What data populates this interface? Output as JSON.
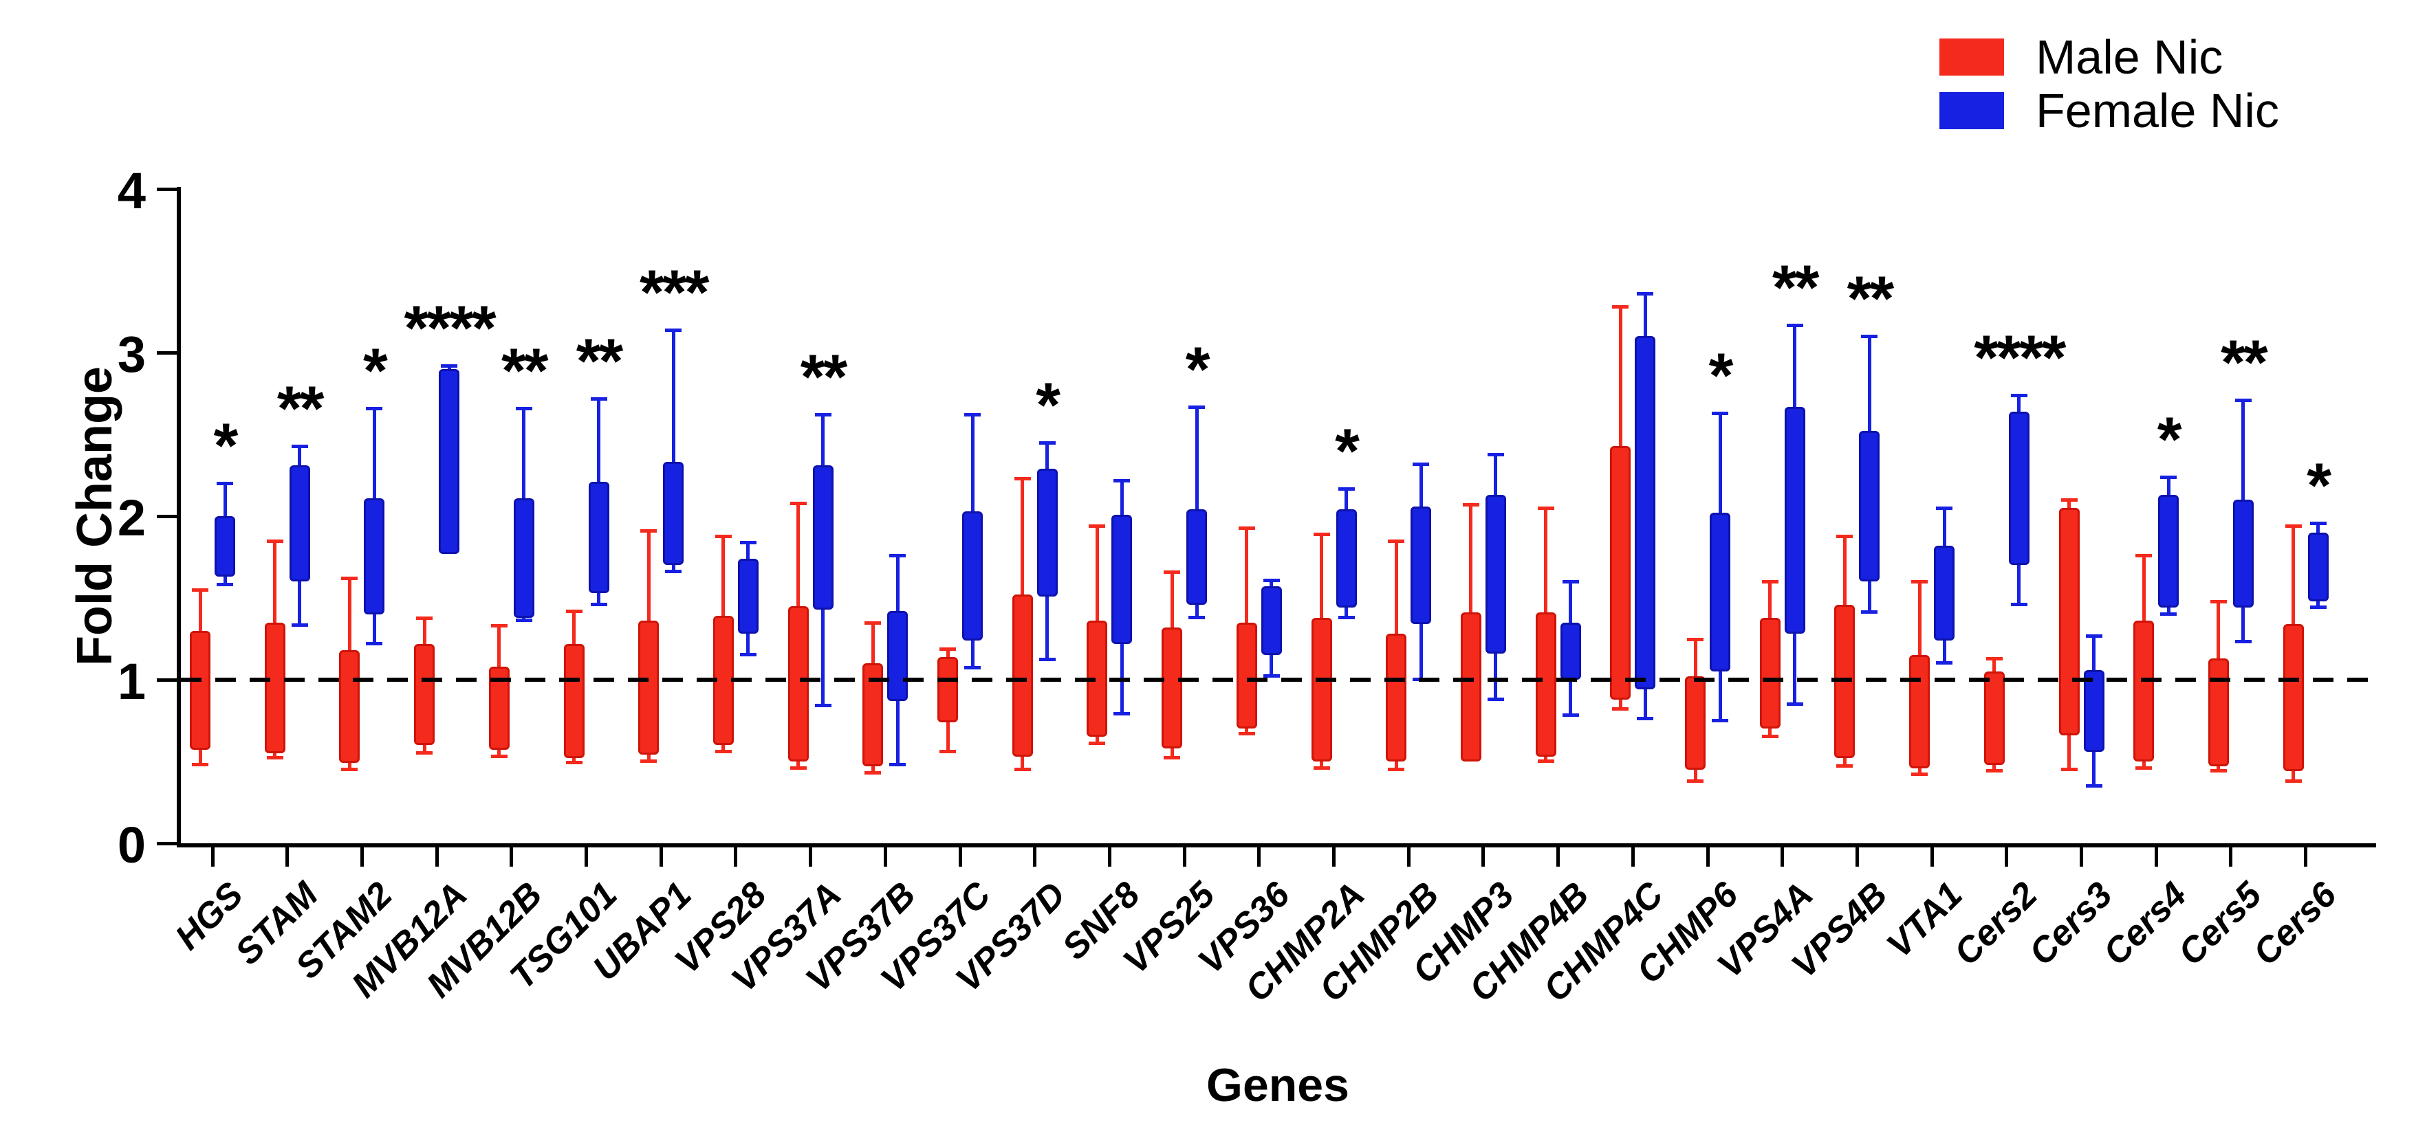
{
  "figure": {
    "ylabel": "Fold Change",
    "xlabel": "Genes"
  },
  "chart_data": {
    "type": "box",
    "title": "",
    "ylabel": "Fold Change",
    "xlabel": "Genes",
    "ylim": [
      0,
      4
    ],
    "yticks": [
      0,
      1,
      2,
      3,
      4
    ],
    "reference_line_y": 1.0,
    "grid": false,
    "legend_position": "top-right",
    "legend": [
      {
        "label": "Male Nic",
        "color": "#f42a1d",
        "edge": "#cf1408"
      },
      {
        "label": "Female Nic",
        "color": "#1721e1",
        "edge": "#0d12ad"
      }
    ],
    "categories": [
      "HGS",
      "STAM",
      "STAM2",
      "MVB12A",
      "MVB12B",
      "TSG101",
      "UBAP1",
      "VPS28",
      "VPS37A",
      "VPS37B",
      "VPS37C",
      "VPS37D",
      "SNF8",
      "VPS25",
      "VPS36",
      "CHMP2A",
      "CHMP2B",
      "CHMP3",
      "CHMP4B",
      "CHMP4C",
      "CHMP6",
      "VPS4A",
      "VPS4B",
      "VTA1",
      "Cers2",
      "Cers3",
      "Cers4",
      "Cers5",
      "Cers6"
    ],
    "significance": [
      "*",
      "**",
      "*",
      "****",
      "**",
      "**",
      "***",
      "",
      "**",
      "",
      "",
      "*",
      "",
      "*",
      "",
      "*",
      "",
      "",
      "",
      "",
      "*",
      "**",
      "**",
      "",
      "****",
      "",
      "*",
      "**",
      "*"
    ],
    "series": [
      {
        "name": "Male Nic",
        "color": "#f42a1d",
        "edge": "#cf1408",
        "boxes": [
          {
            "lo": 0.57,
            "hi": 1.3,
            "wlo": 0.48,
            "whi": 1.55
          },
          {
            "lo": 0.55,
            "hi": 1.35,
            "wlo": 0.52,
            "whi": 1.85
          },
          {
            "lo": 0.49,
            "hi": 1.18,
            "wlo": 0.45,
            "whi": 1.62
          },
          {
            "lo": 0.6,
            "hi": 1.22,
            "wlo": 0.55,
            "whi": 1.38
          },
          {
            "lo": 0.57,
            "hi": 1.08,
            "wlo": 0.53,
            "whi": 1.33
          },
          {
            "lo": 0.52,
            "hi": 1.22,
            "wlo": 0.49,
            "whi": 1.42
          },
          {
            "lo": 0.54,
            "hi": 1.36,
            "wlo": 0.5,
            "whi": 1.91
          },
          {
            "lo": 0.6,
            "hi": 1.39,
            "wlo": 0.56,
            "whi": 1.88
          },
          {
            "lo": 0.5,
            "hi": 1.45,
            "wlo": 0.46,
            "whi": 2.08
          },
          {
            "lo": 0.47,
            "hi": 1.1,
            "wlo": 0.43,
            "whi": 1.35
          },
          {
            "lo": 0.74,
            "hi": 1.14,
            "wlo": 0.56,
            "whi": 1.19
          },
          {
            "lo": 0.53,
            "hi": 1.52,
            "wlo": 0.45,
            "whi": 2.23
          },
          {
            "lo": 0.65,
            "hi": 1.36,
            "wlo": 0.61,
            "whi": 1.94
          },
          {
            "lo": 0.58,
            "hi": 1.32,
            "wlo": 0.52,
            "whi": 1.66
          },
          {
            "lo": 0.7,
            "hi": 1.35,
            "wlo": 0.67,
            "whi": 1.93
          },
          {
            "lo": 0.5,
            "hi": 1.38,
            "wlo": 0.46,
            "whi": 1.89
          },
          {
            "lo": 0.5,
            "hi": 1.28,
            "wlo": 0.45,
            "whi": 1.85
          },
          {
            "lo": 0.5,
            "hi": 1.41,
            "wlo": 0.5,
            "whi": 2.07
          },
          {
            "lo": 0.53,
            "hi": 1.41,
            "wlo": 0.5,
            "whi": 2.05
          },
          {
            "lo": 0.88,
            "hi": 2.43,
            "wlo": 0.82,
            "whi": 3.28
          },
          {
            "lo": 0.45,
            "hi": 1.02,
            "wlo": 0.38,
            "whi": 1.25
          },
          {
            "lo": 0.7,
            "hi": 1.38,
            "wlo": 0.65,
            "whi": 1.6
          },
          {
            "lo": 0.52,
            "hi": 1.46,
            "wlo": 0.47,
            "whi": 1.88
          },
          {
            "lo": 0.46,
            "hi": 1.15,
            "wlo": 0.42,
            "whi": 1.6
          },
          {
            "lo": 0.48,
            "hi": 1.05,
            "wlo": 0.44,
            "whi": 1.13
          },
          {
            "lo": 0.66,
            "hi": 2.05,
            "wlo": 0.45,
            "whi": 2.1
          },
          {
            "lo": 0.5,
            "hi": 1.36,
            "wlo": 0.46,
            "whi": 1.76
          },
          {
            "lo": 0.47,
            "hi": 1.13,
            "wlo": 0.44,
            "whi": 1.48
          },
          {
            "lo": 0.44,
            "hi": 1.34,
            "wlo": 0.38,
            "whi": 1.94
          }
        ]
      },
      {
        "name": "Female Nic",
        "color": "#1721e1",
        "edge": "#0d12ad",
        "boxes": [
          {
            "lo": 1.63,
            "hi": 2.0,
            "wlo": 1.58,
            "whi": 2.2
          },
          {
            "lo": 1.6,
            "hi": 2.31,
            "wlo": 1.33,
            "whi": 2.43
          },
          {
            "lo": 1.4,
            "hi": 2.11,
            "wlo": 1.22,
            "whi": 2.66
          },
          {
            "lo": 1.77,
            "hi": 2.9,
            "wlo": 1.77,
            "whi": 2.92
          },
          {
            "lo": 1.38,
            "hi": 2.11,
            "wlo": 1.36,
            "whi": 2.66
          },
          {
            "lo": 1.53,
            "hi": 2.21,
            "wlo": 1.46,
            "whi": 2.72
          },
          {
            "lo": 1.7,
            "hi": 2.33,
            "wlo": 1.66,
            "whi": 3.14
          },
          {
            "lo": 1.28,
            "hi": 1.74,
            "wlo": 1.15,
            "whi": 1.84
          },
          {
            "lo": 1.43,
            "hi": 2.31,
            "wlo": 0.84,
            "whi": 2.62
          },
          {
            "lo": 0.87,
            "hi": 1.42,
            "wlo": 0.48,
            "whi": 1.76
          },
          {
            "lo": 1.24,
            "hi": 2.03,
            "wlo": 1.07,
            "whi": 2.62
          },
          {
            "lo": 1.51,
            "hi": 2.29,
            "wlo": 1.12,
            "whi": 2.45
          },
          {
            "lo": 1.22,
            "hi": 2.01,
            "wlo": 0.79,
            "whi": 2.22
          },
          {
            "lo": 1.46,
            "hi": 2.04,
            "wlo": 1.38,
            "whi": 2.67
          },
          {
            "lo": 1.15,
            "hi": 1.57,
            "wlo": 1.02,
            "whi": 1.61
          },
          {
            "lo": 1.44,
            "hi": 2.04,
            "wlo": 1.38,
            "whi": 2.17
          },
          {
            "lo": 1.34,
            "hi": 2.06,
            "wlo": 1.0,
            "whi": 2.32
          },
          {
            "lo": 1.16,
            "hi": 2.13,
            "wlo": 0.88,
            "whi": 2.38
          },
          {
            "lo": 1.0,
            "hi": 1.35,
            "wlo": 0.78,
            "whi": 1.6
          },
          {
            "lo": 0.94,
            "hi": 3.1,
            "wlo": 0.76,
            "whi": 3.36
          },
          {
            "lo": 1.05,
            "hi": 2.02,
            "wlo": 0.75,
            "whi": 2.63
          },
          {
            "lo": 1.28,
            "hi": 2.67,
            "wlo": 0.85,
            "whi": 3.17
          },
          {
            "lo": 1.6,
            "hi": 2.52,
            "wlo": 1.41,
            "whi": 3.1
          },
          {
            "lo": 1.24,
            "hi": 1.82,
            "wlo": 1.1,
            "whi": 2.05
          },
          {
            "lo": 1.7,
            "hi": 2.64,
            "wlo": 1.46,
            "whi": 2.74
          },
          {
            "lo": 0.56,
            "hi": 1.06,
            "wlo": 0.35,
            "whi": 1.27
          },
          {
            "lo": 1.44,
            "hi": 2.13,
            "wlo": 1.4,
            "whi": 2.24
          },
          {
            "lo": 1.44,
            "hi": 2.1,
            "wlo": 1.23,
            "whi": 2.71
          },
          {
            "lo": 1.48,
            "hi": 1.9,
            "wlo": 1.44,
            "whi": 1.96
          }
        ]
      }
    ]
  }
}
